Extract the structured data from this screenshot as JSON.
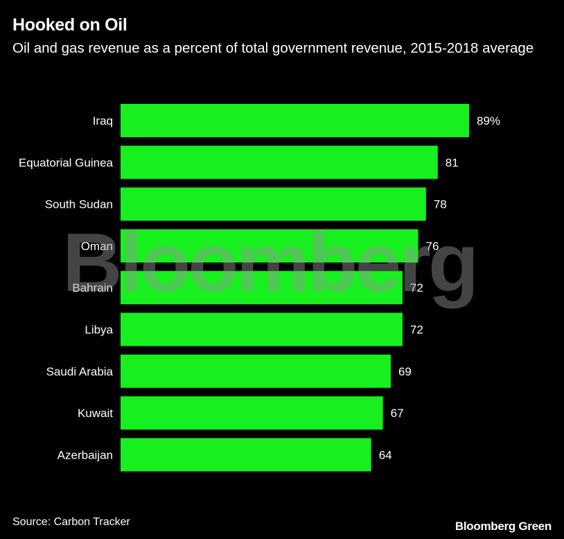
{
  "title": "Hooked on Oil",
  "subtitle": "Oil and gas revenue as a percent of total government revenue, 2015-2018 average",
  "source": "Source: Carbon Tracker",
  "brand": "Bloomberg Green",
  "watermark": "Bloomberg",
  "colors": {
    "bar": "#17ef1e",
    "background": "#000000",
    "text": "#ffffff"
  },
  "chart_data": {
    "type": "bar",
    "orientation": "horizontal",
    "categories": [
      "Iraq",
      "Equatorial Guinea",
      "South Sudan",
      "Oman",
      "Bahrain",
      "Libya",
      "Saudi Arabia",
      "Kuwait",
      "Azerbaijan"
    ],
    "values": [
      89,
      81,
      78,
      76,
      72,
      72,
      69,
      67,
      64
    ],
    "value_labels": [
      "89%",
      "81",
      "78",
      "76",
      "72",
      "72",
      "69",
      "67",
      "64"
    ],
    "xlim": [
      0,
      89
    ],
    "grid": false,
    "legend": "none"
  }
}
